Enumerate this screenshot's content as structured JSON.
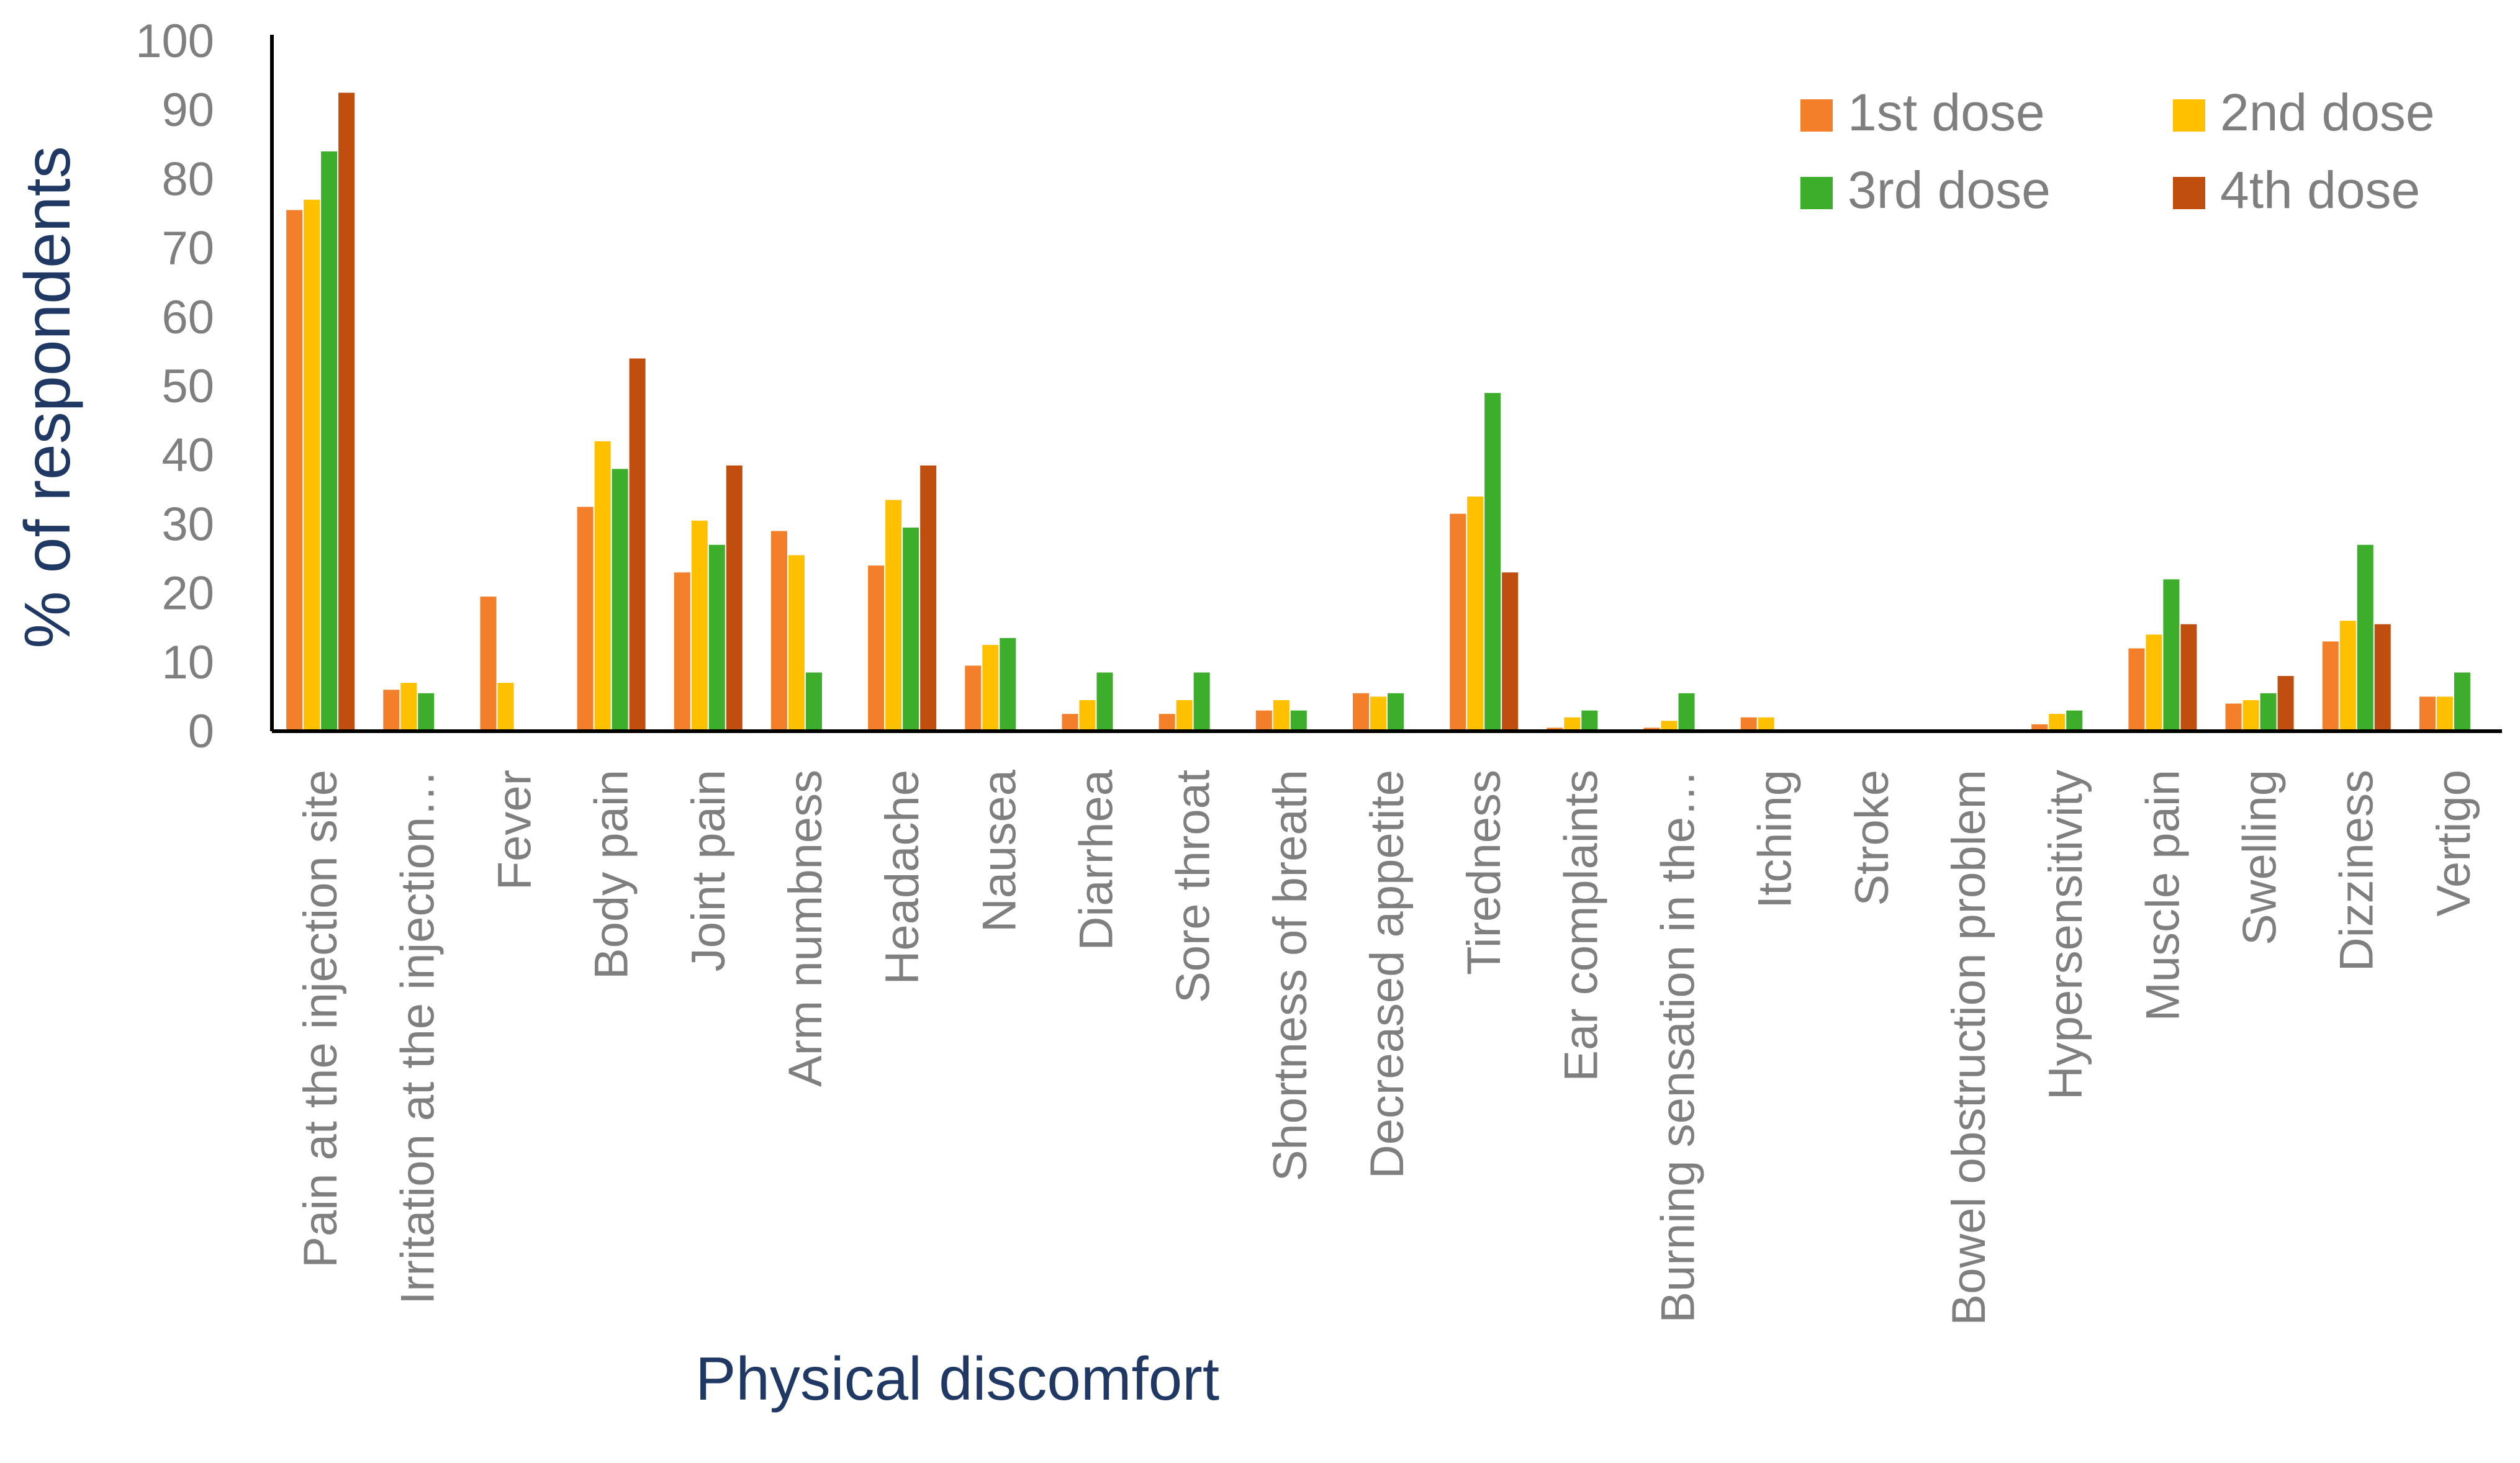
{
  "chart_data": {
    "type": "bar",
    "title": "",
    "xlabel": "Physical discomfort",
    "ylabel": "% of respondents",
    "ylim": [
      0,
      100
    ],
    "yticks": [
      "0",
      "10",
      "20",
      "30",
      "40",
      "50",
      "60",
      "70",
      "80",
      "90",
      "100"
    ],
    "grid": false,
    "legend_position": "top-right",
    "categories": [
      "Pain at the injection site",
      "Irritation at the injection…",
      "Fever",
      "Body pain",
      "Joint pain",
      "Arm numbness",
      "Headache",
      "Nausea",
      "Diarrhea",
      "Sore throat",
      "Shortness of breath",
      "Decreased appetite",
      "Tiredness",
      "Ear complaints",
      "Burning sensation in the…",
      "Itching",
      "Stroke",
      "Bowel obstruction problem",
      "Hypersensitivity",
      "Muscle pain",
      "Swelling",
      "Dizziness",
      "Vertigo"
    ],
    "series": [
      {
        "name": "1st dose",
        "color": "#f47f2a",
        "values": [
          75.5,
          6,
          19.5,
          32.5,
          23,
          29,
          24,
          9.5,
          2.5,
          2.5,
          3,
          5.5,
          31.5,
          0.5,
          0.5,
          2,
          0,
          0,
          1,
          12,
          4,
          13,
          5
        ]
      },
      {
        "name": "2nd dose",
        "color": "#ffc000",
        "values": [
          77,
          7,
          7,
          42,
          30.5,
          25.5,
          33.5,
          12.5,
          4.5,
          4.5,
          4.5,
          5,
          34,
          2,
          1.5,
          2,
          0,
          0,
          2.5,
          14,
          4.5,
          16,
          5
        ]
      },
      {
        "name": "3rd dose",
        "color": "#3dae2b",
        "values": [
          84,
          5.5,
          0,
          38,
          27,
          8.5,
          29.5,
          13.5,
          8.5,
          8.5,
          3,
          5.5,
          49,
          3,
          5.5,
          0,
          0,
          0,
          3,
          22,
          5.5,
          27,
          8.5
        ]
      },
      {
        "name": "4th dose",
        "color": "#c04f0f",
        "values": [
          92.5,
          0,
          0,
          54,
          38.5,
          0,
          38.5,
          0,
          0,
          0,
          0,
          0,
          23,
          0,
          0,
          0,
          0,
          0,
          0,
          15.5,
          8,
          15.5,
          0
        ]
      }
    ]
  }
}
